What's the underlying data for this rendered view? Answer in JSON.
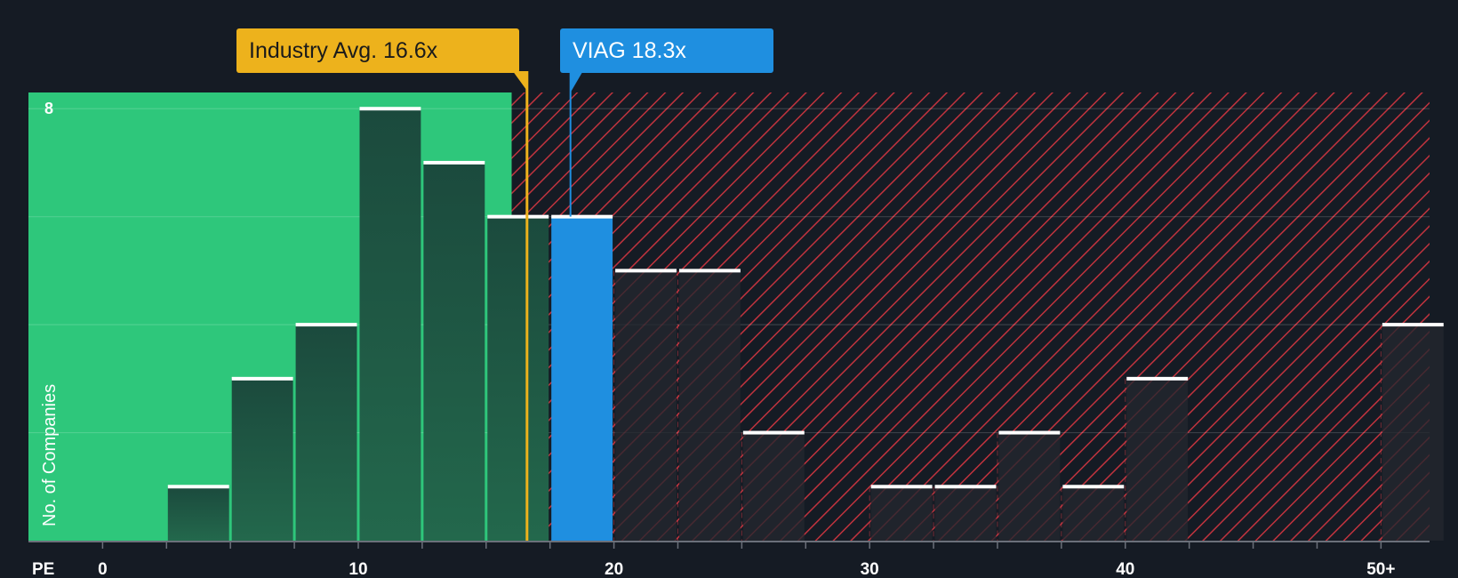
{
  "chart_data": {
    "type": "bar",
    "title": "",
    "xlabel": "PE",
    "ylabel": "No. of Companies",
    "xlim": [
      -2.9,
      51.9
    ],
    "ylim": [
      0,
      8.3
    ],
    "y_tick_labels": [
      {
        "value": 8,
        "label": "8"
      }
    ],
    "x_ticks": [
      0,
      10,
      20,
      30,
      40,
      50
    ],
    "x_tick_labels": [
      "0",
      "10",
      "20",
      "30",
      "40",
      "50+"
    ],
    "bin_width": 2.5,
    "bins": [
      {
        "start": 2.5,
        "value": 1
      },
      {
        "start": 5.0,
        "value": 3
      },
      {
        "start": 7.5,
        "value": 4
      },
      {
        "start": 10.0,
        "value": 8
      },
      {
        "start": 12.5,
        "value": 7
      },
      {
        "start": 15.0,
        "value": 6
      },
      {
        "start": 17.5,
        "value": 6,
        "highlight": true
      },
      {
        "start": 20.0,
        "value": 5
      },
      {
        "start": 22.5,
        "value": 5
      },
      {
        "start": 25.0,
        "value": 2
      },
      {
        "start": 27.5,
        "value": 0
      },
      {
        "start": 30.0,
        "value": 1
      },
      {
        "start": 32.5,
        "value": 1
      },
      {
        "start": 35.0,
        "value": 2
      },
      {
        "start": 37.5,
        "value": 1
      },
      {
        "start": 40.0,
        "value": 3
      },
      {
        "start": 42.5,
        "value": 0
      },
      {
        "start": 45.0,
        "value": 0
      },
      {
        "start": 47.5,
        "value": 0
      },
      {
        "start": 50.0,
        "value": 4
      }
    ],
    "grid": true,
    "fair_region_end": 16.0,
    "industry_avg": {
      "label": "Industry Avg. 16.6x",
      "value": 16.6
    },
    "company": {
      "label": "VIAG 18.3x",
      "value": 18.3
    },
    "colors": {
      "background": "#151b24",
      "fair_zone": "#2ec77b",
      "bar_fair": "#1e5a44",
      "bar_expensive": "#262830",
      "hatch": "#c0333e",
      "highlight": "#1f8fe0",
      "industry": "#edb21c",
      "bar_cap": "#ffffff",
      "axis_text": "#ffffff"
    }
  }
}
